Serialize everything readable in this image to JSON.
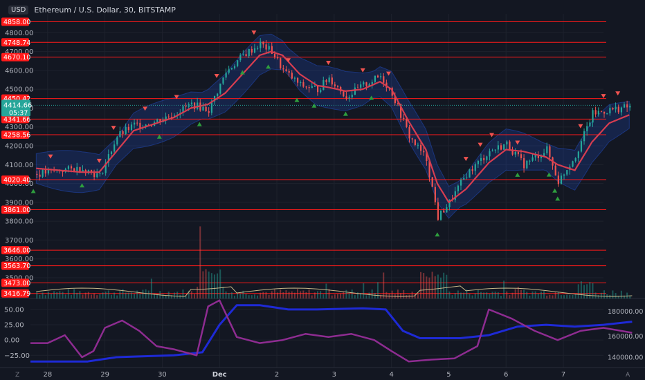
{
  "header": {
    "currency": "USD",
    "title": "Ethereum / U.S. Dollar, 30, BITSTAMP"
  },
  "colors": {
    "bg": "#131722",
    "grid": "#1e222d",
    "up": "#26a69a",
    "down": "#ef5350",
    "level": "#ff1a1a",
    "ma": "#d63d50",
    "band": "#2962ff",
    "osc_fast": "#8e2c91",
    "osc_slow": "#1e2ad6",
    "volume": "#c8b98a"
  },
  "chart_data": [
    {
      "type": "candlestick",
      "title": "Ethereum / U.S. Dollar, 30, BITSTAMP",
      "ylim": [
        3390,
        4900
      ],
      "y_ticks": [
        3500,
        3600,
        3700,
        3800,
        3900,
        4000,
        4100,
        4200,
        4300,
        4400,
        4500,
        4600,
        4700,
        4800
      ],
      "x_labels": [
        "28",
        "29",
        "30",
        "Dec",
        "2",
        "3",
        "4",
        "5",
        "6",
        "7"
      ],
      "x_range": [
        0,
        10
      ],
      "x_tick_positions": [
        0.3,
        1.3,
        2.3,
        3.3,
        4.3,
        5.3,
        6.3,
        7.3,
        8.3,
        9.3
      ],
      "levels": [
        "4858.00",
        "4748.74",
        "4670.10",
        "4450.42",
        "4341.66",
        "4258.56",
        "4020.40",
        "3861.00",
        "3646.00",
        "3563.70",
        "3473.00",
        "3416.79"
      ],
      "current_price": "4414.66",
      "countdown": "05:37",
      "price_path": [
        [
          0.1,
          4050
        ],
        [
          0.5,
          4070
        ],
        [
          0.9,
          4080
        ],
        [
          1.2,
          4040
        ],
        [
          1.5,
          4250
        ],
        [
          1.8,
          4310
        ],
        [
          2.1,
          4320
        ],
        [
          2.5,
          4370
        ],
        [
          2.8,
          4420
        ],
        [
          3.1,
          4390
        ],
        [
          3.4,
          4590
        ],
        [
          3.7,
          4680
        ],
        [
          4.0,
          4740
        ],
        [
          4.2,
          4700
        ],
        [
          4.4,
          4600
        ],
        [
          4.7,
          4520
        ],
        [
          5.0,
          4500
        ],
        [
          5.2,
          4560
        ],
        [
          5.5,
          4460
        ],
        [
          5.8,
          4520
        ],
        [
          6.1,
          4570
        ],
        [
          6.3,
          4480
        ],
        [
          6.6,
          4250
        ],
        [
          6.9,
          4130
        ],
        [
          7.1,
          3820
        ],
        [
          7.3,
          3900
        ],
        [
          7.6,
          4050
        ],
        [
          8.0,
          4170
        ],
        [
          8.3,
          4210
        ],
        [
          8.6,
          4100
        ],
        [
          9.0,
          4180
        ],
        [
          9.2,
          4010
        ],
        [
          9.5,
          4150
        ],
        [
          9.8,
          4370
        ],
        [
          10.1,
          4390
        ],
        [
          10.5,
          4410
        ]
      ],
      "ma_path": [
        [
          0.1,
          4080
        ],
        [
          0.5,
          4070
        ],
        [
          0.9,
          4060
        ],
        [
          1.2,
          4060
        ],
        [
          1.5,
          4170
        ],
        [
          1.8,
          4280
        ],
        [
          2.1,
          4310
        ],
        [
          2.5,
          4350
        ],
        [
          2.8,
          4400
        ],
        [
          3.1,
          4420
        ],
        [
          3.4,
          4480
        ],
        [
          3.7,
          4580
        ],
        [
          4.0,
          4680
        ],
        [
          4.2,
          4700
        ],
        [
          4.4,
          4680
        ],
        [
          4.7,
          4580
        ],
        [
          5.0,
          4520
        ],
        [
          5.2,
          4510
        ],
        [
          5.5,
          4490
        ],
        [
          5.8,
          4500
        ],
        [
          6.1,
          4540
        ],
        [
          6.3,
          4500
        ],
        [
          6.6,
          4330
        ],
        [
          6.9,
          4180
        ],
        [
          7.1,
          4000
        ],
        [
          7.3,
          3900
        ],
        [
          7.6,
          3970
        ],
        [
          8.0,
          4110
        ],
        [
          8.3,
          4180
        ],
        [
          8.6,
          4170
        ],
        [
          9.0,
          4140
        ],
        [
          9.2,
          4100
        ],
        [
          9.5,
          4070
        ],
        [
          9.8,
          4220
        ],
        [
          10.1,
          4320
        ],
        [
          10.5,
          4370
        ]
      ]
    },
    {
      "type": "line",
      "y_ticks": [
        50,
        25,
        0,
        -25
      ],
      "y_tick_labels": [
        "50.00",
        "25.00",
        "0.00",
        "−25.00"
      ],
      "ylim": [
        -45,
        68
      ],
      "right_ticks": [
        "180000.00",
        "160000.00",
        "140000.00"
      ],
      "series": [
        {
          "values": [
            [
              0.0,
              -35
            ],
            [
              1.0,
              -35
            ],
            [
              1.5,
              -28
            ],
            [
              2.5,
              -25
            ],
            [
              3.0,
              -20
            ],
            [
              3.3,
              25
            ],
            [
              3.6,
              57
            ],
            [
              4.0,
              57
            ],
            [
              4.5,
              50
            ],
            [
              5.0,
              50
            ],
            [
              5.8,
              52
            ],
            [
              6.2,
              50
            ],
            [
              6.5,
              15
            ],
            [
              6.8,
              3
            ],
            [
              7.5,
              3
            ],
            [
              8.0,
              8
            ],
            [
              8.5,
              22
            ],
            [
              9.0,
              25
            ],
            [
              9.5,
              22
            ],
            [
              10.0,
              25
            ],
            [
              10.5,
              30
            ]
          ]
        },
        {
          "values": [
            [
              0.0,
              -5
            ],
            [
              0.3,
              -5
            ],
            [
              0.6,
              8
            ],
            [
              0.9,
              -28
            ],
            [
              1.1,
              -18
            ],
            [
              1.3,
              20
            ],
            [
              1.6,
              32
            ],
            [
              1.9,
              15
            ],
            [
              2.2,
              -10
            ],
            [
              2.5,
              -15
            ],
            [
              2.9,
              -25
            ],
            [
              3.1,
              55
            ],
            [
              3.3,
              65
            ],
            [
              3.6,
              5
            ],
            [
              4.0,
              -5
            ],
            [
              4.4,
              0
            ],
            [
              4.8,
              10
            ],
            [
              5.2,
              5
            ],
            [
              5.6,
              10
            ],
            [
              6.0,
              0
            ],
            [
              6.3,
              -18
            ],
            [
              6.6,
              -35
            ],
            [
              7.0,
              -32
            ],
            [
              7.4,
              -30
            ],
            [
              7.8,
              -10
            ],
            [
              8.0,
              50
            ],
            [
              8.4,
              35
            ],
            [
              8.8,
              15
            ],
            [
              9.2,
              0
            ],
            [
              9.6,
              15
            ],
            [
              10.0,
              20
            ],
            [
              10.5,
              12
            ]
          ]
        }
      ]
    }
  ]
}
